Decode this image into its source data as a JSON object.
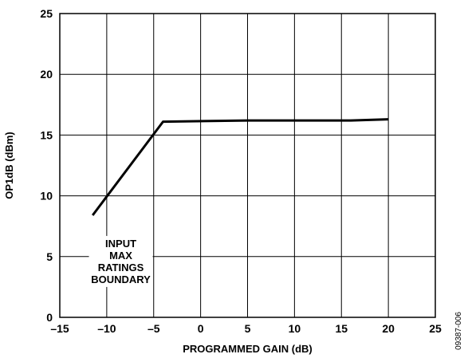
{
  "chart_data": {
    "type": "line",
    "title": "",
    "xlabel": "PROGRAMMED GAIN (dB)",
    "ylabel": "OP1dB (dBm)",
    "xlim": [
      -15,
      25
    ],
    "ylim": [
      0,
      25
    ],
    "x_ticks": [
      -15,
      -10,
      -5,
      0,
      5,
      10,
      15,
      20,
      25
    ],
    "x_tick_labels": [
      "–15",
      "–10",
      "–5",
      "0",
      "5",
      "10",
      "15",
      "20",
      "25"
    ],
    "y_ticks": [
      0,
      5,
      10,
      15,
      20,
      25
    ],
    "y_tick_labels": [
      "0",
      "5",
      "10",
      "15",
      "20",
      "25"
    ],
    "grid": true,
    "series": [
      {
        "x": [
          -11.5,
          -4,
          5,
          10,
          16,
          20
        ],
        "y": [
          8.4,
          16.1,
          16.2,
          16.2,
          16.2,
          16.3
        ]
      }
    ],
    "annotations": [
      {
        "lines": [
          "INPUT",
          "MAX",
          "RATINGS",
          "BOUNDARY"
        ],
        "x": -8.5,
        "y": 4.6
      }
    ],
    "line_color": "#000000"
  },
  "figure_id": "09387-006"
}
